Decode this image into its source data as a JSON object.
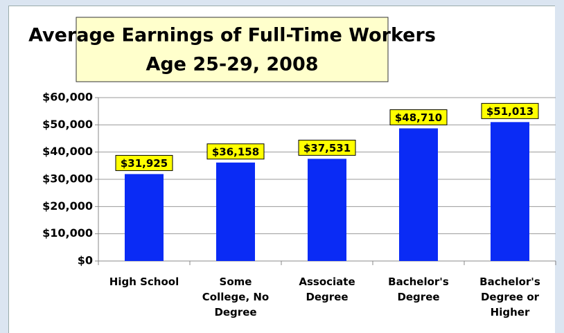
{
  "chart_data": {
    "type": "bar",
    "title": [
      "Average Earnings of Full-Time Workers",
      "Age 25-29, 2008"
    ],
    "categories": [
      "High School",
      "Some College, No Degree",
      "Associate Degree",
      "Bachelor's Degree",
      "Bachelor's Degree or Higher"
    ],
    "values": [
      31925,
      36158,
      37531,
      48710,
      51013
    ],
    "value_labels": [
      "$31,925",
      "$36,158",
      "$37,531",
      "$48,710",
      "$51,013"
    ],
    "color": "#0a2bf5",
    "ylim": [
      0,
      60000
    ],
    "yticks": [
      {
        "value": 0,
        "label": "$0"
      },
      {
        "value": 10000,
        "label": "$10,000"
      },
      {
        "value": 20000,
        "label": "$20,000"
      },
      {
        "value": 30000,
        "label": "$30,000"
      },
      {
        "value": 40000,
        "label": "$40,000"
      },
      {
        "value": 50000,
        "label": "$50,000"
      },
      {
        "value": 60000,
        "label": "$60,000"
      }
    ],
    "grid": true
  }
}
